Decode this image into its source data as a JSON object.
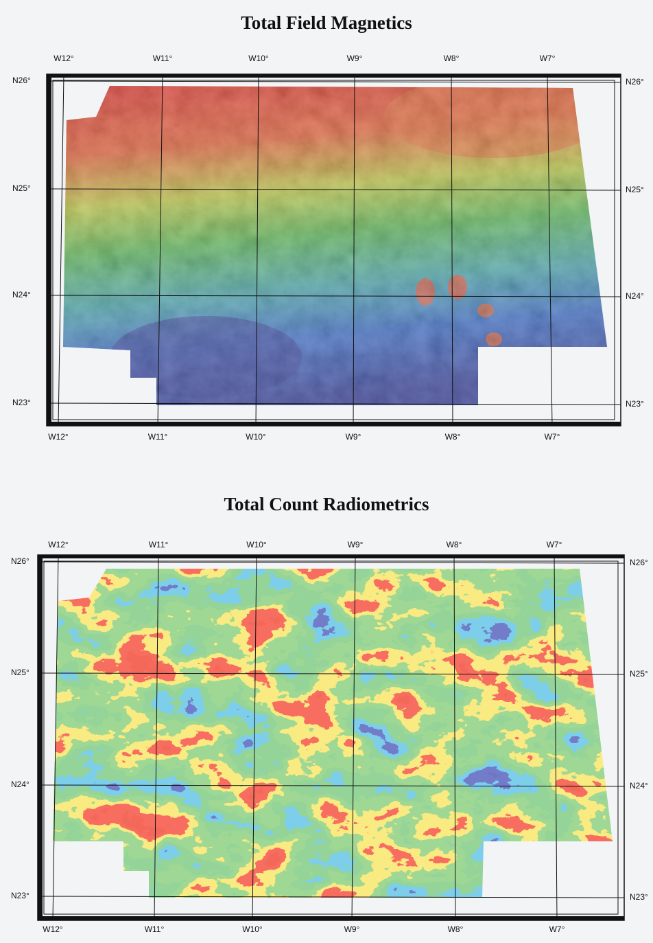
{
  "maps": [
    {
      "title": "Total Field Magnetics",
      "longitudes": [
        "W12°",
        "W11°",
        "W10°",
        "W9°",
        "W8°",
        "W7°"
      ],
      "latitudes": [
        "N26°",
        "N25°",
        "N24°",
        "N23°"
      ]
    },
    {
      "title": "Total Count Radiometrics",
      "longitudes": [
        "W12°",
        "W11°",
        "W10°",
        "W9°",
        "W8°",
        "W7°"
      ],
      "latitudes": [
        "N26°",
        "N25°",
        "N24°",
        "N23°"
      ]
    }
  ]
}
